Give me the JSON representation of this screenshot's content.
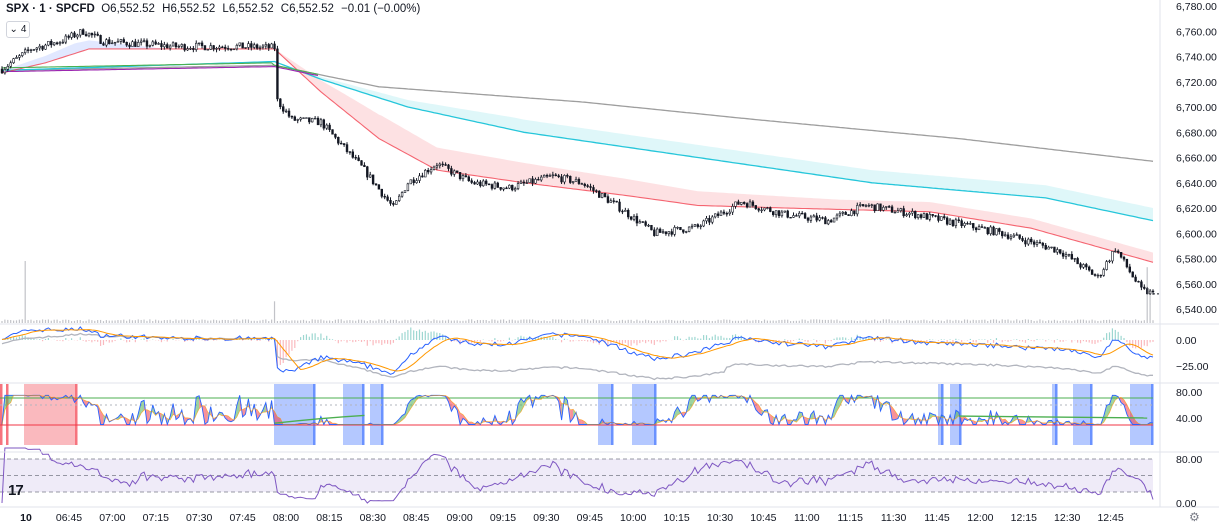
{
  "legend": {
    "symbol": "SPX · 1 · SPCFD",
    "o_label": "O",
    "o_value": "6,552.52",
    "h_label": "H",
    "h_value": "6,552.52",
    "l_label": "L",
    "l_value": "6,552.52",
    "c_label": "C",
    "c_value": "6,552.52",
    "change": "−0.01 (−0.00%)",
    "collapse_count": "4"
  },
  "chart_data": [
    {
      "type": "candlestick",
      "price_range": [
        6530,
        6785
      ],
      "y_ticks": [
        "6,780.00",
        "6,760.00",
        "6,740.00",
        "6,720.00",
        "6,700.00",
        "6,680.00",
        "6,660.00",
        "6,640.00",
        "6,620.00",
        "6,600.00",
        "6,580.00",
        "6,560.00",
        "6,540.00"
      ],
      "y_tick_values": [
        6780,
        6760,
        6740,
        6720,
        6700,
        6680,
        6660,
        6640,
        6620,
        6600,
        6580,
        6560,
        6540
      ],
      "x_labels": [
        "10",
        "06:45",
        "07:00",
        "07:15",
        "07:30",
        "07:45",
        "08:00",
        "08:15",
        "08:30",
        "08:45",
        "09:00",
        "09:15",
        "09:30",
        "09:45",
        "10:00",
        "10:15",
        "10:30",
        "10:45",
        "11:00",
        "11:15",
        "11:30",
        "11:45",
        "12:00",
        "12:15",
        "12:30",
        "12:45"
      ],
      "price_anchors": [
        {
          "t": 0,
          "p": 6730
        },
        {
          "t": 10,
          "p": 6746
        },
        {
          "t": 20,
          "p": 6752
        },
        {
          "t": 28,
          "p": 6760
        },
        {
          "t": 35,
          "p": 6752
        },
        {
          "t": 60,
          "p": 6748
        },
        {
          "t": 80,
          "p": 6748
        },
        {
          "t": 94,
          "p": 6747
        },
        {
          "t": 95,
          "p": 6705
        },
        {
          "t": 100,
          "p": 6690
        },
        {
          "t": 110,
          "p": 6688
        },
        {
          "t": 125,
          "p": 6650
        },
        {
          "t": 135,
          "p": 6620
        },
        {
          "t": 140,
          "p": 6640
        },
        {
          "t": 150,
          "p": 6655
        },
        {
          "t": 162,
          "p": 6640
        },
        {
          "t": 175,
          "p": 6636
        },
        {
          "t": 190,
          "p": 6645
        },
        {
          "t": 200,
          "p": 6640
        },
        {
          "t": 212,
          "p": 6622
        },
        {
          "t": 225,
          "p": 6600
        },
        {
          "t": 240,
          "p": 6605
        },
        {
          "t": 255,
          "p": 6625
        },
        {
          "t": 270,
          "p": 6615
        },
        {
          "t": 285,
          "p": 6610
        },
        {
          "t": 298,
          "p": 6622
        },
        {
          "t": 315,
          "p": 6615
        },
        {
          "t": 335,
          "p": 6605
        },
        {
          "t": 345,
          "p": 6600
        },
        {
          "t": 365,
          "p": 6586
        },
        {
          "t": 378,
          "p": 6565
        },
        {
          "t": 384,
          "p": 6588
        },
        {
          "t": 393,
          "p": 6555
        },
        {
          "t": 397,
          "p": 6552
        }
      ],
      "ema_fast_anchors": [
        {
          "t": 0,
          "p": 6727
        },
        {
          "t": 15,
          "p": 6735
        },
        {
          "t": 30,
          "p": 6746
        },
        {
          "t": 94,
          "p": 6746
        },
        {
          "t": 110,
          "p": 6712
        },
        {
          "t": 130,
          "p": 6675
        },
        {
          "t": 150,
          "p": 6650
        },
        {
          "t": 180,
          "p": 6640
        },
        {
          "t": 215,
          "p": 6630
        },
        {
          "t": 240,
          "p": 6622
        },
        {
          "t": 270,
          "p": 6620
        },
        {
          "t": 320,
          "p": 6617
        },
        {
          "t": 355,
          "p": 6604
        },
        {
          "t": 397,
          "p": 6577
        }
      ],
      "ema_mid_anchors": [
        {
          "t": 0,
          "p": 6729
        },
        {
          "t": 94,
          "p": 6736
        },
        {
          "t": 110,
          "p": 6722
        },
        {
          "t": 140,
          "p": 6700
        },
        {
          "t": 180,
          "p": 6680
        },
        {
          "t": 240,
          "p": 6660
        },
        {
          "t": 300,
          "p": 6640
        },
        {
          "t": 360,
          "p": 6628
        },
        {
          "t": 397,
          "p": 6610
        }
      ],
      "ema_slow_anchors": [
        {
          "t": 0,
          "p": 6729
        },
        {
          "t": 94,
          "p": 6733
        },
        {
          "t": 130,
          "p": 6716
        },
        {
          "t": 200,
          "p": 6704
        },
        {
          "t": 260,
          "p": 6690
        },
        {
          "t": 330,
          "p": 6675
        },
        {
          "t": 397,
          "p": 6657
        }
      ],
      "colors": {
        "up": "#131722",
        "down": "#131722",
        "ema_fast": "#f23645",
        "ema_mid": "#26c6da",
        "ema_slow": "#9e9e9e",
        "vwap": "#5b7fff",
        "green_ma": "#4caf50",
        "purple_ma": "#9c27b0"
      },
      "volume_spikes": [
        {
          "t": 8,
          "v": 1.0
        },
        {
          "t": 94,
          "v": 0.35
        },
        {
          "t": 395,
          "v": 0.9
        },
        {
          "t": 396,
          "v": 0.45
        }
      ]
    },
    {
      "type": "line",
      "name_ticks": [
        "0.00",
        "−25.00"
      ],
      "tick_values": [
        0,
        -25
      ],
      "range": [
        -42,
        12
      ]
    },
    {
      "type": "line",
      "name_ticks": [
        "80.00",
        "40.00"
      ],
      "tick_values": [
        80,
        40
      ],
      "range": [
        10,
        100
      ],
      "highlight_color_red": "#f23645",
      "highlight_color_blue": "#2962ff"
    },
    {
      "type": "line",
      "name_ticks": [
        "80.00",
        "0.00"
      ],
      "tick_values": [
        80,
        0
      ],
      "range": [
        0,
        100
      ],
      "band": [
        20,
        80
      ],
      "line_color": "#7e57c2"
    }
  ],
  "ui": {
    "logo": "17",
    "settings_icon": "gear-icon"
  }
}
